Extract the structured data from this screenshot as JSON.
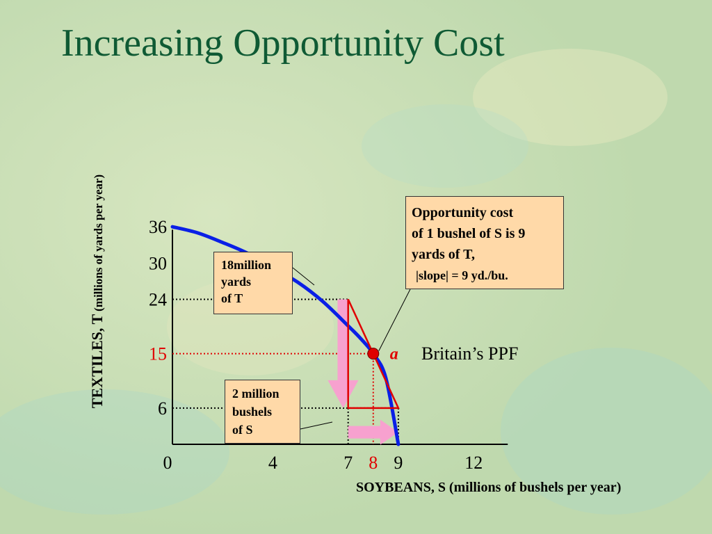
{
  "title": "Increasing Opportunity Cost",
  "colors": {
    "title": "#0f5a34",
    "ppf_curve": "#0a1fe6",
    "highlight": "#e00000",
    "arrow": "#f7a1cf",
    "callout_fill": "#ffd9a8",
    "background": "#c9dfb3"
  },
  "chart_data": {
    "type": "line",
    "xlabel": "SOYBEANS, S (millions of bushels per year)",
    "ylabel": "TEXTILES, T",
    "ylabel_unit": "(millions of yards per year)",
    "xlim": [
      0,
      12.5
    ],
    "ylim": [
      0,
      40
    ],
    "x_ticks": [
      "0",
      "4",
      "7",
      "8",
      "9",
      "12"
    ],
    "y_ticks": [
      "36",
      "30",
      "24",
      "15",
      "6"
    ],
    "highlight_ticks": {
      "x": "8",
      "y": "15"
    },
    "series": [
      {
        "name": "Britain’s PPF",
        "x": [
          0,
          1,
          2,
          3,
          4,
          5,
          6,
          7,
          7.5,
          8,
          8.5,
          9
        ],
        "y": [
          36,
          35,
          33.4,
          31.6,
          29.2,
          26.8,
          23.6,
          19.6,
          17.5,
          15,
          11,
          0
        ]
      }
    ],
    "point": {
      "label": "a",
      "x": 8,
      "y": 15
    },
    "slope_triangle": {
      "top": [
        7,
        24
      ],
      "bottom_left": [
        7,
        6
      ],
      "bottom_right": [
        9,
        6
      ]
    },
    "arrows": {
      "down": {
        "x": 6.8,
        "from": 24,
        "to": 6
      },
      "right": {
        "y": 2,
        "from": 7,
        "to": 9
      }
    },
    "annotations": {
      "ppf_label": "Britain’s PPF",
      "callout_textiles": [
        "18million",
        "yards",
        "of T"
      ],
      "callout_soybeans": [
        "2 million",
        "bushels",
        "of S"
      ],
      "callout_cost": [
        "Opportunity cost",
        "of 1 bushel of S is 9",
        "yards of T,",
        "|slope| = 9 yd./bu."
      ]
    }
  }
}
